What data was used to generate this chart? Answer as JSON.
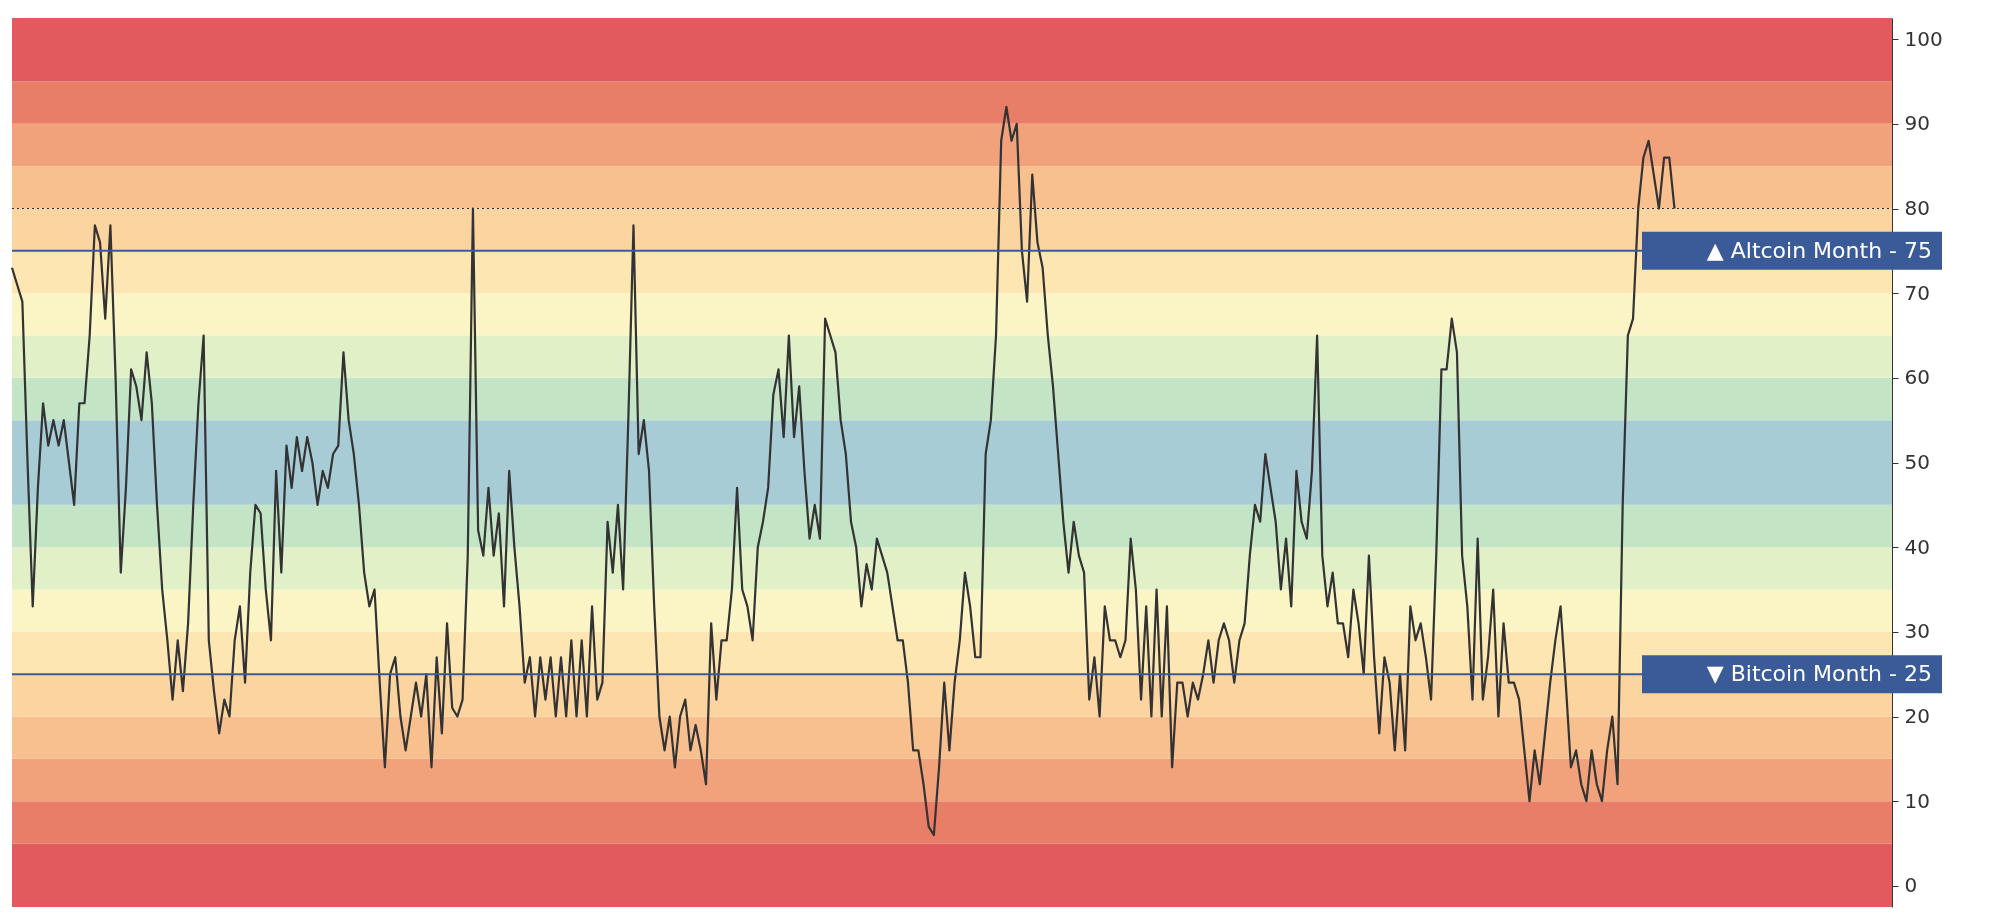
{
  "chart_data": {
    "type": "line",
    "categories": [
      null,
      null,
      null,
      null,
      null,
      null,
      null,
      null,
      null,
      null,
      null,
      null,
      null,
      null,
      null,
      null,
      null,
      null,
      null,
      null,
      null,
      null,
      null,
      null,
      null,
      null,
      null,
      null,
      null,
      null,
      null,
      null,
      null,
      null,
      null,
      null,
      null,
      null,
      null,
      null,
      null,
      null,
      null,
      null,
      null,
      null,
      null,
      null,
      null,
      null,
      null,
      null,
      null,
      null,
      null,
      null,
      null,
      null,
      null,
      null,
      null,
      null,
      null,
      null,
      null,
      null,
      null,
      null,
      null,
      null,
      null,
      null,
      null,
      null,
      null,
      null,
      null,
      null,
      null,
      null,
      null,
      null,
      null,
      null,
      null,
      null,
      null,
      null,
      null,
      null,
      null,
      null,
      null,
      null,
      null,
      null,
      null,
      null,
      null,
      null,
      null,
      null,
      null,
      null,
      null,
      null,
      null,
      null,
      null,
      null,
      null,
      null,
      null,
      null,
      null,
      null,
      null,
      null,
      null,
      null,
      null,
      null,
      null,
      null,
      null,
      null,
      null,
      null,
      null,
      null,
      null,
      null,
      null,
      null,
      null,
      null,
      null,
      null,
      null,
      null,
      null,
      null,
      null,
      null,
      null,
      null,
      null,
      null,
      null,
      null,
      null,
      null,
      null,
      null,
      null,
      null,
      null,
      null,
      null,
      null,
      null,
      null,
      null,
      null,
      null,
      null,
      null,
      null,
      null,
      null,
      null,
      null,
      null,
      null,
      null,
      null,
      null,
      null,
      null,
      null,
      null,
      null,
      null,
      null,
      null,
      null,
      null,
      null,
      null,
      null,
      null,
      null,
      null,
      null,
      null,
      null,
      null,
      null,
      null,
      null,
      null,
      null,
      null,
      null,
      null,
      null,
      null,
      null,
      null,
      null,
      null,
      null,
      null,
      null,
      null,
      null,
      null,
      null,
      null,
      null,
      null,
      null,
      null,
      null,
      null,
      null,
      null,
      null,
      null,
      null,
      null,
      null,
      null,
      null,
      null,
      null,
      null,
      null,
      null,
      null,
      null,
      null,
      null,
      null,
      null,
      null,
      null,
      null,
      null,
      null,
      null,
      null,
      null,
      null,
      null,
      null,
      null,
      null,
      null,
      null,
      null,
      null,
      null,
      null,
      null,
      null,
      null,
      null,
      null,
      null,
      null,
      null,
      null,
      null,
      null,
      null,
      null,
      null,
      null,
      null,
      null,
      null,
      null,
      null,
      null,
      null,
      null,
      null,
      null,
      null,
      null,
      null,
      null,
      null,
      null,
      null,
      null,
      null,
      null,
      null,
      null,
      null,
      null,
      null,
      null,
      null,
      null,
      null,
      null,
      null,
      null,
      null,
      null,
      null,
      null,
      null,
      null,
      null,
      null,
      null,
      null,
      null,
      null,
      null,
      null,
      null,
      null,
      null,
      null,
      null,
      null,
      null,
      null,
      null,
      null,
      null,
      null,
      null,
      null,
      null,
      null,
      null,
      null,
      null,
      null,
      null,
      null,
      null,
      null,
      null,
      null,
      null,
      null,
      null,
      null,
      null,
      null,
      null,
      null,
      null,
      null,
      null,
      null,
      null
    ],
    "series": [
      {
        "color": "#333333",
        "values": [
          73,
          71,
          69,
          50,
          33,
          47,
          57,
          52,
          55,
          52,
          55,
          50,
          45,
          57,
          57,
          65,
          78,
          76,
          67,
          78,
          60,
          37,
          47,
          61,
          59,
          55,
          63,
          57,
          45,
          35,
          29,
          22,
          29,
          23,
          31,
          45,
          57,
          65,
          29,
          23,
          18,
          22,
          20,
          29,
          33,
          24,
          37,
          45,
          44,
          35,
          29,
          49,
          37,
          52,
          47,
          53,
          49,
          53,
          50,
          45,
          49,
          47,
          51,
          52,
          63,
          55,
          51,
          45,
          37,
          33,
          35,
          24,
          14,
          25,
          27,
          20,
          16,
          20,
          24,
          20,
          25,
          14,
          27,
          18,
          31,
          21,
          20,
          22,
          39,
          80,
          42,
          39,
          47,
          39,
          44,
          33,
          49,
          40,
          33,
          24,
          27,
          20,
          27,
          22,
          27,
          20,
          27,
          20,
          29,
          20,
          29,
          20,
          33,
          22,
          24,
          43,
          37,
          45,
          35,
          55,
          78,
          51,
          55,
          49,
          33,
          20,
          16,
          20,
          14,
          20,
          22,
          16,
          19,
          16,
          12,
          31,
          22,
          29,
          29,
          35,
          47,
          35,
          33,
          29,
          40,
          43,
          47,
          58,
          61,
          53,
          65,
          53,
          59,
          49,
          41,
          45,
          41,
          67,
          65,
          63,
          55,
          51,
          43,
          40,
          33,
          38,
          35,
          41,
          39,
          37,
          33,
          29,
          29,
          24,
          16,
          16,
          12,
          7,
          6,
          14,
          24,
          16,
          24,
          29,
          37,
          33,
          27,
          27,
          51,
          55,
          65,
          88,
          92,
          88,
          90,
          75,
          69,
          84,
          76,
          73,
          65,
          59,
          51,
          43,
          37,
          43,
          39,
          37,
          22,
          27,
          20,
          33,
          29,
          29,
          27,
          29,
          41,
          35,
          22,
          33,
          20,
          35,
          20,
          33,
          14,
          24,
          24,
          20,
          24,
          22,
          25,
          29,
          24,
          29,
          31,
          29,
          24,
          29,
          31,
          39,
          45,
          43,
          51,
          47,
          43,
          35,
          41,
          33,
          49,
          43,
          41,
          49,
          65,
          39,
          33,
          37,
          31,
          31,
          27,
          35,
          31,
          25,
          39,
          27,
          18,
          27,
          24,
          16,
          25,
          16,
          33,
          29,
          31,
          27,
          22,
          39,
          61,
          61,
          67,
          63,
          39,
          33,
          22,
          41,
          22,
          27,
          35,
          20,
          31,
          24,
          24,
          22,
          16,
          10,
          16,
          12,
          18,
          24,
          29,
          33,
          24,
          14,
          16,
          12,
          10,
          16,
          12,
          10,
          16,
          20,
          12,
          45,
          65,
          67,
          80,
          86,
          88,
          84,
          80,
          86,
          86,
          80,
          null,
          null,
          null,
          null,
          null,
          null,
          null,
          null,
          null,
          null,
          null,
          null,
          null,
          null,
          null,
          null,
          null,
          null,
          null,
          null,
          null,
          null,
          null,
          null,
          null,
          null,
          null,
          null,
          null,
          null,
          null,
          null,
          null,
          null,
          null,
          null,
          null,
          null,
          null,
          null,
          null,
          null
        ]
      }
    ],
    "ylim": [
      -2.5,
      102.5
    ],
    "yticks": [
      0,
      10,
      20,
      30,
      40,
      50,
      60,
      70,
      80,
      90,
      100
    ],
    "grid": false,
    "tick_labels": "y",
    "marker": "none",
    "line_style": "solid",
    "ref_lines": [
      {
        "axis": "y",
        "value": 75,
        "label": "▲ Altcoin Month - 75",
        "color": "#3b5b98",
        "line_style": "solid"
      },
      {
        "axis": "y",
        "value": 25,
        "label": "▼ Bitcoin Month - 25",
        "color": "#3b5b98",
        "line_style": "solid"
      },
      {
        "axis": "y",
        "value": 80,
        "label": null,
        "color": "#333333",
        "line_style": "dotted"
      }
    ],
    "bands": [
      {
        "axis": "y",
        "from": -2.5,
        "to": 5,
        "label": null,
        "color": "#e05a5e"
      },
      {
        "axis": "y",
        "from": 5,
        "to": 10,
        "label": null,
        "color": "#e87d68"
      },
      {
        "axis": "y",
        "from": 10,
        "to": 15,
        "label": null,
        "color": "#f2a27a"
      },
      {
        "axis": "y",
        "from": 15,
        "to": 20,
        "label": null,
        "color": "#f8c08e"
      },
      {
        "axis": "y",
        "from": 20,
        "to": 25,
        "label": null,
        "color": "#fbd4a0"
      },
      {
        "axis": "y",
        "from": 25,
        "to": 30,
        "label": null,
        "color": "#fde6b2"
      },
      {
        "axis": "y",
        "from": 30,
        "to": 35,
        "label": null,
        "color": "#fbf4c4"
      },
      {
        "axis": "y",
        "from": 35,
        "to": 40,
        "label": null,
        "color": "#e2f0c8"
      },
      {
        "axis": "y",
        "from": 40,
        "to": 45,
        "label": null,
        "color": "#c4e4c6"
      },
      {
        "axis": "y",
        "from": 45,
        "to": 55,
        "label": null,
        "color": "#a8ccd6"
      },
      {
        "axis": "y",
        "from": 55,
        "to": 60,
        "label": null,
        "color": "#c4e4c6"
      },
      {
        "axis": "y",
        "from": 60,
        "to": 65,
        "label": null,
        "color": "#e2f0c8"
      },
      {
        "axis": "y",
        "from": 65,
        "to": 70,
        "label": null,
        "color": "#fbf4c4"
      },
      {
        "axis": "y",
        "from": 70,
        "to": 75,
        "label": null,
        "color": "#fde6b2"
      },
      {
        "axis": "y",
        "from": 75,
        "to": 80,
        "label": null,
        "color": "#fbd4a0"
      },
      {
        "axis": "y",
        "from": 80,
        "to": 85,
        "label": null,
        "color": "#f8c08e"
      },
      {
        "axis": "y",
        "from": 85,
        "to": 90,
        "label": null,
        "color": "#f2a27a"
      },
      {
        "axis": "y",
        "from": 90,
        "to": 95,
        "label": null,
        "color": "#e87d68"
      },
      {
        "axis": "y",
        "from": 95,
        "to": 102.5,
        "label": null,
        "color": "#e05a5e"
      }
    ]
  }
}
